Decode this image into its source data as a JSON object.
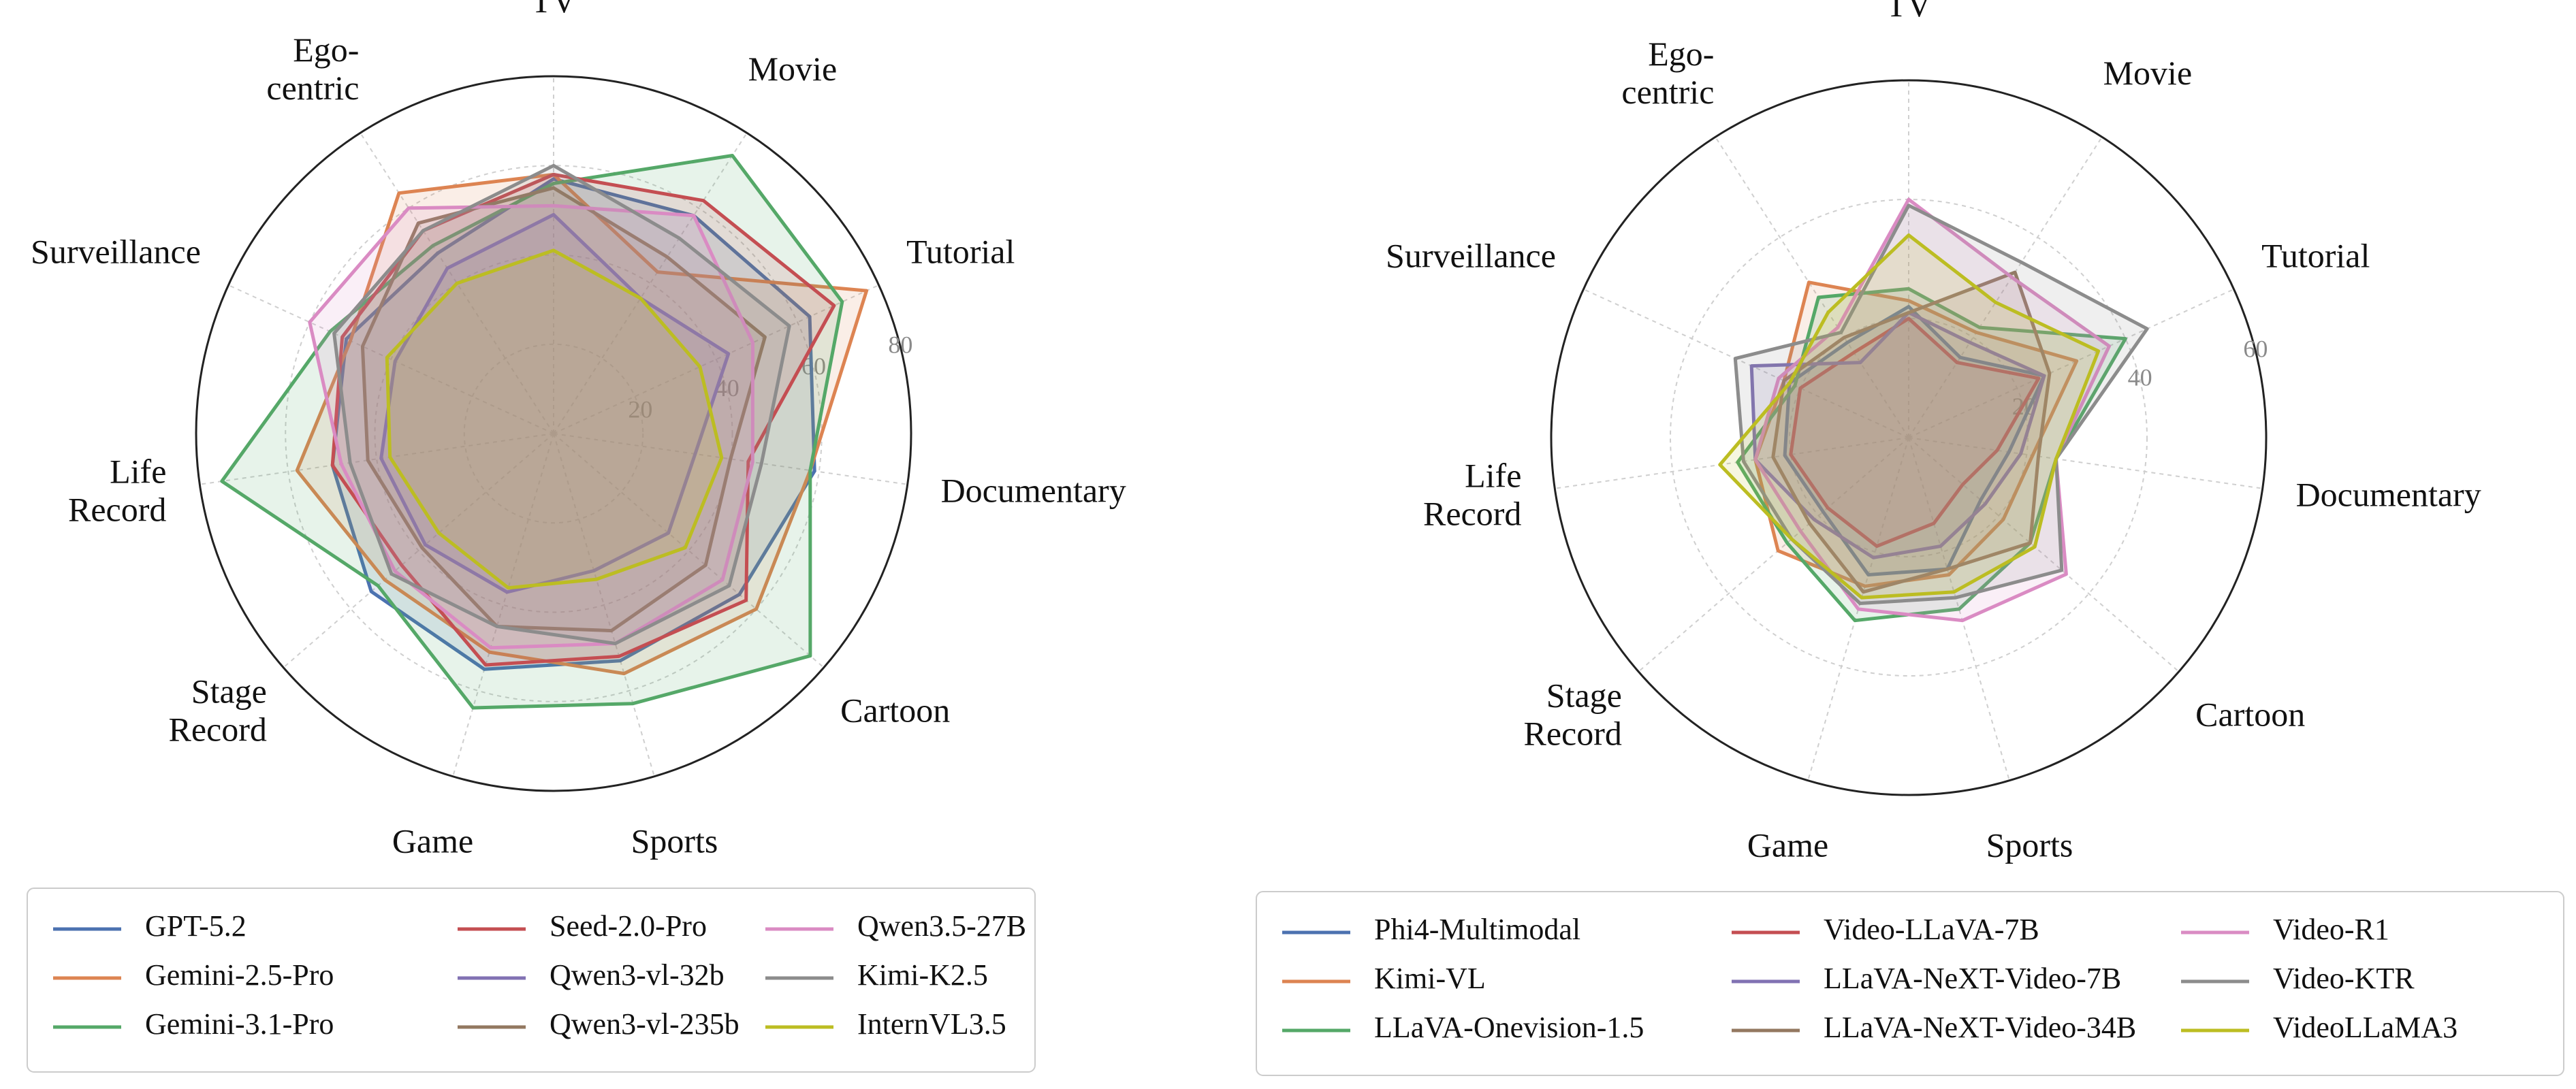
{
  "chart_data": [
    {
      "type": "radar",
      "categories": [
        "TV",
        "Movie",
        "Tutorial",
        "Documentary",
        "Cartoon",
        "Sports",
        "Game",
        "Stage\nRecord",
        "Life\nRecord",
        "Surveillance",
        "Ego-\ncentric"
      ],
      "rlim": [
        0,
        80
      ],
      "rticks": [
        20,
        40,
        60,
        80
      ],
      "grid": true,
      "legend": "bottom",
      "series": [
        {
          "name": "GPT-5.2",
          "color": "#4c72b0",
          "values": [
            57,
            58,
            63,
            59,
            55,
            53,
            55,
            54,
            50,
            51,
            48
          ]
        },
        {
          "name": "Gemini-2.5-Pro",
          "color": "#dd8452",
          "values": [
            58,
            43,
            77,
            58,
            60,
            56,
            51,
            50,
            58,
            50,
            64
          ]
        },
        {
          "name": "Gemini-3.1-Pro",
          "color": "#55a868",
          "values": [
            56,
            74,
            71,
            58,
            76,
            63,
            64,
            52,
            75,
            55,
            50
          ]
        },
        {
          "name": "Seed-2.0-Pro",
          "color": "#c44e52",
          "values": [
            58,
            62,
            69,
            44,
            57,
            52,
            54,
            45,
            50,
            52,
            54
          ]
        },
        {
          "name": "Qwen3-vl-32b",
          "color": "#8172b3",
          "values": [
            49,
            36,
            43,
            32,
            34,
            32,
            37,
            38,
            39,
            39,
            44
          ]
        },
        {
          "name": "Qwen3-vl-235b",
          "color": "#937860",
          "values": [
            55,
            47,
            52,
            40,
            45,
            46,
            45,
            39,
            42,
            47,
            56
          ]
        },
        {
          "name": "Qwen3.5-27B",
          "color": "#da8bc3",
          "values": [
            51,
            58,
            49,
            45,
            50,
            49,
            50,
            47,
            48,
            60,
            60
          ]
        },
        {
          "name": "Kimi-K2.5",
          "color": "#8c8c8c",
          "values": [
            60,
            52,
            58,
            47,
            52,
            49,
            45,
            48,
            46,
            54,
            54
          ]
        },
        {
          "name": "InternVL3.5",
          "color": "#bcbd22",
          "values": [
            41,
            36,
            36,
            38,
            39,
            34,
            36,
            34,
            37,
            41,
            40
          ]
        }
      ]
    },
    {
      "type": "radar",
      "categories": [
        "TV",
        "Movie",
        "Tutorial",
        "Documentary",
        "Cartoon",
        "Sports",
        "Game",
        "Stage\nRecord",
        "Life\nRecord",
        "Surveillance",
        "Ego-\ncentric"
      ],
      "rlim": [
        0,
        60
      ],
      "rticks": [
        20,
        40,
        60
      ],
      "grid": true,
      "legend": "bottom",
      "series": [
        {
          "name": "Phi4-Multimodal",
          "color": "#4c72b0",
          "values": [
            22,
            16,
            25,
            17,
            16,
            23,
            24,
            19,
            21,
            22,
            19
          ]
        },
        {
          "name": "Kimi-VL",
          "color": "#dd8452",
          "values": [
            23,
            21,
            31,
            21,
            21,
            24,
            26,
            29,
            26,
            23,
            31
          ]
        },
        {
          "name": "LLaVA-Onevision-1.5",
          "color": "#55a868",
          "values": [
            25,
            22,
            40,
            25,
            27,
            30,
            32,
            27,
            29,
            21,
            28
          ]
        },
        {
          "name": "Video-LLaVA-7B",
          "color": "#c44e52",
          "values": [
            20,
            15,
            24,
            15,
            12,
            15,
            19,
            18,
            20,
            20,
            17
          ]
        },
        {
          "name": "LLaVA-NeXT-Video-7B",
          "color": "#8172b3",
          "values": [
            21,
            19,
            25,
            19,
            17,
            19,
            21,
            21,
            26,
            29,
            15
          ]
        },
        {
          "name": "LLaVA-NeXT-Video-34B",
          "color": "#937860",
          "values": [
            21,
            33,
            26,
            22,
            27,
            23,
            27,
            22,
            23,
            23,
            20
          ]
        },
        {
          "name": "Video-R1",
          "color": "#da8bc3",
          "values": [
            40,
            32,
            37,
            25,
            35,
            32,
            30,
            24,
            26,
            24,
            22
          ]
        },
        {
          "name": "Video-KTR",
          "color": "#8c8c8c",
          "values": [
            39,
            35,
            44,
            25,
            34,
            28,
            29,
            26,
            28,
            32,
            21
          ]
        },
        {
          "name": "VideoLLaMA3",
          "color": "#bcbd22",
          "values": [
            34,
            27,
            35,
            25,
            28,
            27,
            28,
            26,
            32,
            22,
            25
          ]
        }
      ]
    }
  ]
}
